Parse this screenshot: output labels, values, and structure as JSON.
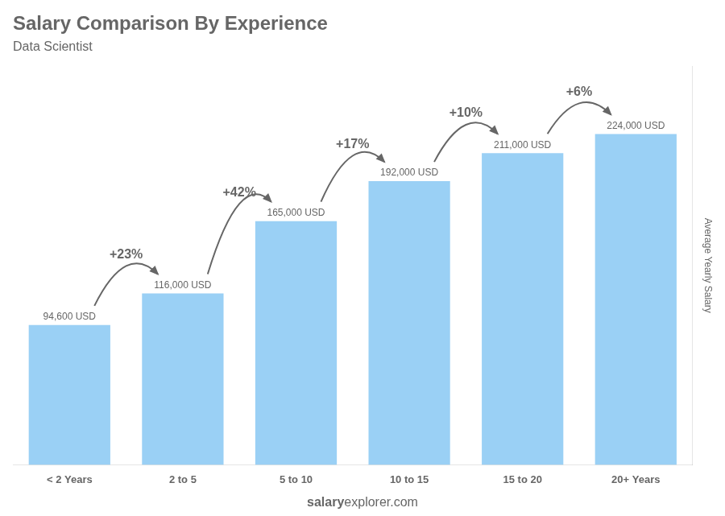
{
  "chart_data": {
    "type": "bar",
    "title": "Salary Comparison By Experience",
    "subtitle": "Data Scientist",
    "categories": [
      "< 2 Years",
      "2 to 5",
      "5 to 10",
      "10 to 15",
      "15 to 20",
      "20+ Years"
    ],
    "values": [
      94600,
      116000,
      165000,
      192000,
      211000,
      224000
    ],
    "value_labels": [
      "94,600 USD",
      "116,000 USD",
      "165,000 USD",
      "192,000 USD",
      "211,000 USD",
      "224,000 USD"
    ],
    "data_labels": true,
    "annotations": [
      "+23%",
      "+42%",
      "+17%",
      "+10%",
      "+6%"
    ],
    "ylabel": "Average Yearly Salary",
    "footer": [
      "salary",
      "explorer.com"
    ],
    "ylim": [
      0,
      270000
    ],
    "grid": false,
    "tick_labels": "x"
  }
}
